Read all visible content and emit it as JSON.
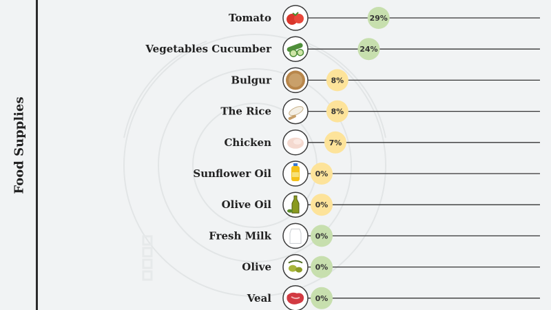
{
  "axis_title": "Food Supplies",
  "colors": {
    "green_bubble": "#c7dfae",
    "yellow_bubble": "#fde39a",
    "line": "#333333",
    "icon_ring": "#3a3a3a"
  },
  "chart_data": {
    "type": "bar",
    "orientation": "horizontal",
    "categories": [
      "Tomato",
      "Vegetables Cucumber",
      "Bulgur",
      "The Rice",
      "Chicken",
      "Sunflower Oil",
      "Olive Oil",
      "Fresh Milk",
      "Olive",
      "Veal"
    ],
    "values": [
      29,
      24,
      8,
      8,
      7,
      0,
      0,
      0,
      0,
      0
    ],
    "value_labels": [
      "29%",
      "24%",
      "8%",
      "8%",
      "7%",
      "0%",
      "0%",
      "0%",
      "0%",
      "0%"
    ],
    "bubble_colors": [
      "green",
      "green",
      "yellow",
      "yellow",
      "yellow",
      "yellow",
      "yellow",
      "green",
      "green",
      "green"
    ],
    "icons": [
      "tomato-icon",
      "cucumber-icon",
      "bulgur-icon",
      "rice-icon",
      "chicken-icon",
      "sunflower-oil-icon",
      "olive-oil-icon",
      "milk-icon",
      "olive-icon",
      "veal-icon"
    ],
    "ylabel": "Food Supplies",
    "xlim": [
      0,
      100
    ],
    "grid": false,
    "legend": "none"
  }
}
